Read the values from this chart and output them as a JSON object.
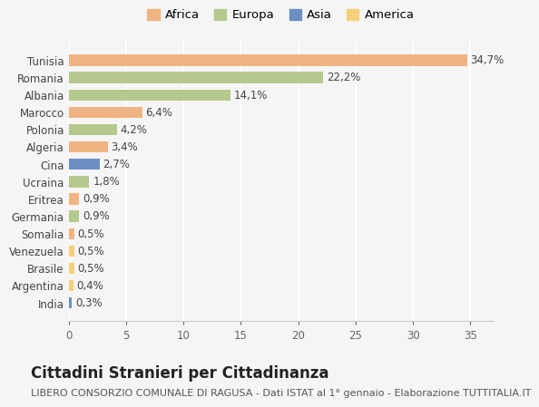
{
  "categories": [
    "Tunisia",
    "Romania",
    "Albania",
    "Marocco",
    "Polonia",
    "Algeria",
    "Cina",
    "Ucraina",
    "Eritrea",
    "Germania",
    "Somalia",
    "Venezuela",
    "Brasile",
    "Argentina",
    "India"
  ],
  "values": [
    34.7,
    22.2,
    14.1,
    6.4,
    4.2,
    3.4,
    2.7,
    1.8,
    0.9,
    0.9,
    0.5,
    0.5,
    0.5,
    0.4,
    0.3
  ],
  "labels": [
    "34,7%",
    "22,2%",
    "14,1%",
    "6,4%",
    "4,2%",
    "3,4%",
    "2,7%",
    "1,8%",
    "0,9%",
    "0,9%",
    "0,5%",
    "0,5%",
    "0,5%",
    "0,4%",
    "0,3%"
  ],
  "colors": [
    "#f0b482",
    "#b5c98e",
    "#b5c98e",
    "#f0b482",
    "#b5c98e",
    "#f0b482",
    "#6b8fc2",
    "#b5c98e",
    "#f0b482",
    "#b5c98e",
    "#f0b482",
    "#f5d07a",
    "#f5d07a",
    "#f5d07a",
    "#6b8fc2"
  ],
  "legend_labels": [
    "Africa",
    "Europa",
    "Asia",
    "America"
  ],
  "legend_colors": [
    "#f0b482",
    "#b5c98e",
    "#6b8fc2",
    "#f5d07a"
  ],
  "xlim": [
    0,
    37
  ],
  "xticks": [
    0,
    5,
    10,
    15,
    20,
    25,
    30,
    35
  ],
  "title": "Cittadini Stranieri per Cittadinanza",
  "subtitle": "LIBERO CONSORZIO COMUNALE DI RAGUSA - Dati ISTAT al 1° gennaio - Elaborazione TUTTITALIA.IT",
  "bg_color": "#f5f5f5",
  "grid_color": "#ffffff",
  "bar_height": 0.65,
  "title_fontsize": 12,
  "subtitle_fontsize": 8,
  "label_fontsize": 8.5,
  "tick_fontsize": 8.5,
  "legend_fontsize": 9.5
}
